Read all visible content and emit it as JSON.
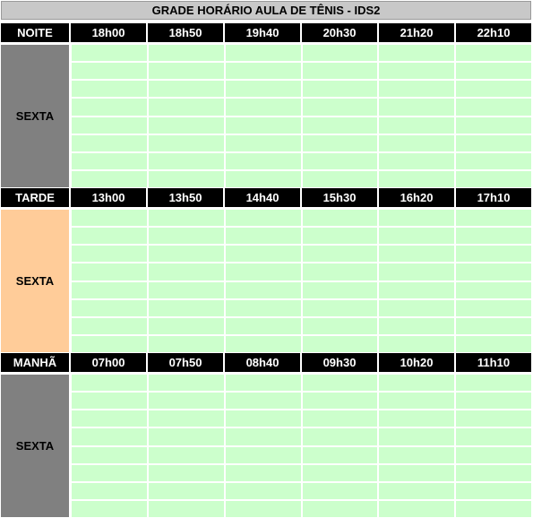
{
  "title": "GRADE HORÁRIO AULA DE TÊNIS - IDS2",
  "colors": {
    "header_bg": "#000000",
    "title_bg": "#c8c8c8",
    "slot_bg": "#ccffcc",
    "night_day_bg": "#808080",
    "afternoon_day_bg": "#ffcc99",
    "morning_day_bg": "#808080"
  },
  "sections": [
    {
      "period": "NOITE",
      "day": "SEXTA",
      "times": [
        "18h00",
        "18h50",
        "19h40",
        "20h30",
        "21h20",
        "22h10"
      ]
    },
    {
      "period": "TARDE",
      "day": "SEXTA",
      "times": [
        "13h00",
        "13h50",
        "14h40",
        "15h30",
        "16h20",
        "17h10"
      ]
    },
    {
      "period": "MANHÃ",
      "day": "SEXTA",
      "times": [
        "07h00",
        "07h50",
        "08h40",
        "09h30",
        "10h20",
        "11h10"
      ]
    }
  ]
}
